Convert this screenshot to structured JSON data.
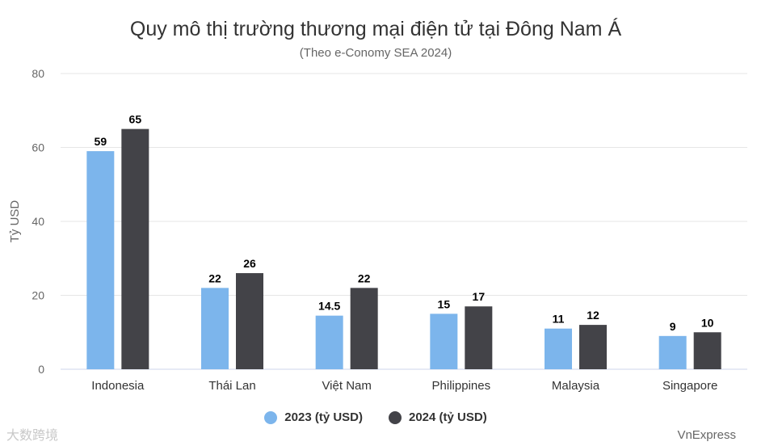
{
  "chart_data": {
    "type": "bar",
    "title": "Quy mô thị trường thương mại điện tử tại Đông Nam Á",
    "subtitle": "(Theo e-Conomy SEA 2024)",
    "ylabel": "Tỷ USD",
    "xlabel": "",
    "ylim": [
      0,
      80
    ],
    "yticks": [
      0,
      20,
      40,
      60,
      80
    ],
    "grid": true,
    "legend_position": "bottom",
    "categories": [
      "Indonesia",
      "Thái Lan",
      "Việt Nam",
      "Philippines",
      "Malaysia",
      "Singapore"
    ],
    "series": [
      {
        "name": "2023 (tỷ USD)",
        "color": "#7cb5ec",
        "values": [
          59,
          22,
          14.5,
          15,
          11,
          9
        ],
        "labels": [
          "59",
          "22",
          "14.5",
          "15",
          "11",
          "9"
        ]
      },
      {
        "name": "2024 (tỷ USD)",
        "color": "#434348",
        "values": [
          65,
          26,
          22,
          17,
          12,
          10
        ],
        "labels": [
          "65",
          "26",
          "22",
          "17",
          "12",
          "10"
        ]
      }
    ]
  },
  "source": "VnExpress",
  "watermark": "大数跨境"
}
